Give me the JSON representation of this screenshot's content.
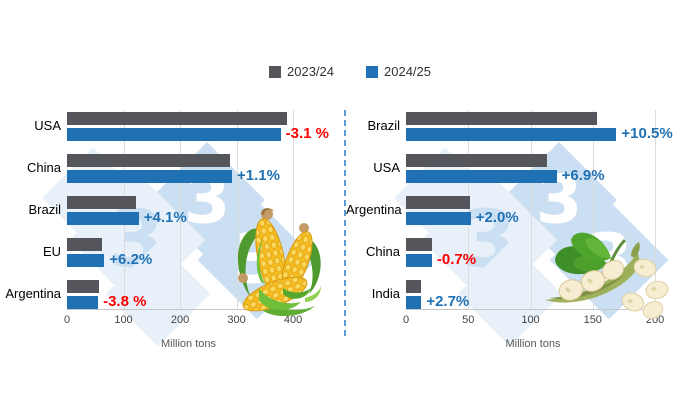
{
  "legend": {
    "items": [
      {
        "label": "2023/24",
        "color": "#54565B"
      },
      {
        "label": "2024/25",
        "color": "#1F71B4"
      }
    ]
  },
  "colors": {
    "series_2023_24": "#54565B",
    "series_2024_25": "#1F71B4",
    "positive_change_text": "#1F71B4",
    "negative_change_text": "#FF0000",
    "divider_dashed_line": "#5B9BD5",
    "gridline": "#DBDBDB",
    "watermark_blue": "#CBDFF2"
  },
  "watermark": {
    "glyph": "3"
  },
  "chart_data": [
    {
      "type": "bar",
      "orientation": "horizontal",
      "icon": "corn",
      "categories": [
        "USA",
        "China",
        "Brazil",
        "EU",
        "Argentina"
      ],
      "series": [
        {
          "name": "2023/24",
          "color": "#54565B",
          "values": [
            390,
            289,
            122,
            62,
            57
          ]
        },
        {
          "name": "2024/25",
          "color": "#1F71B4",
          "values": [
            378,
            292,
            127,
            66,
            55
          ]
        }
      ],
      "change_labels": [
        {
          "text": "-3.1 %",
          "color": "#FF0000"
        },
        {
          "text": "+1.1%",
          "color": "#1F71B4"
        },
        {
          "text": "+4.1%",
          "color": "#1F71B4"
        },
        {
          "text": "+6.2%",
          "color": "#1F71B4"
        },
        {
          "text": "-3.8 %",
          "color": "#FF0000"
        }
      ],
      "xlabel": "Million tons",
      "xticks": [
        0,
        100,
        200,
        300,
        400
      ],
      "xmax": 430,
      "grid": true,
      "legend_position": "top-center"
    },
    {
      "type": "bar",
      "orientation": "horizontal",
      "icon": "soybean",
      "categories": [
        "Brazil",
        "USA",
        "Argentina",
        "China",
        "India"
      ],
      "series": [
        {
          "name": "2023/24",
          "color": "#54565B",
          "values": [
            153,
            113,
            51,
            21,
            12
          ]
        },
        {
          "name": "2024/25",
          "color": "#1F71B4",
          "values": [
            169,
            121,
            52,
            20.8,
            12.3
          ]
        }
      ],
      "change_labels": [
        {
          "text": "+10.5%",
          "color": "#1F71B4"
        },
        {
          "text": "+6.9%",
          "color": "#1F71B4"
        },
        {
          "text": "+2.0%",
          "color": "#1F71B4"
        },
        {
          "text": "-0.7%",
          "color": "#FF0000"
        },
        {
          "text": "+2.7%",
          "color": "#1F71B4"
        }
      ],
      "xlabel": "Million tons",
      "xticks": [
        0,
        50,
        100,
        150,
        200
      ],
      "xmax": 204,
      "grid": true,
      "legend_position": "top-center"
    }
  ]
}
